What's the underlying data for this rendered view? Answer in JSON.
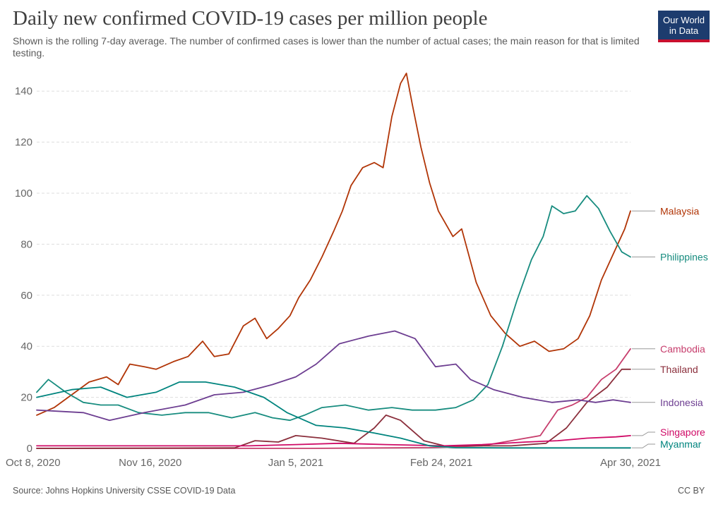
{
  "header": {
    "title": "Daily new confirmed COVID-19 cases per million people",
    "subtitle": "Shown is the rolling 7-day average. The number of confirmed cases is lower than the number of actual cases; the main reason for that is limited testing.",
    "logo_line1": "Our World",
    "logo_line2": "in Data"
  },
  "footer": {
    "source": "Source: Johns Hopkins University CSSE COVID-19 Data",
    "license": "CC BY"
  },
  "colors": {
    "logo_bg": "#1d3c6e",
    "logo_accent": "#c8102e",
    "grid": "#dddddd",
    "axis_text": "#666666"
  },
  "chart_data": {
    "type": "line",
    "x_axis": {
      "type": "date",
      "start": "2020-10-08",
      "end": "2021-04-30",
      "ticks": [
        "2020-10-08",
        "2020-11-16",
        "2021-01-05",
        "2021-02-24",
        "2021-04-30"
      ],
      "tick_labels": [
        "Oct 8, 2020",
        "Nov 16, 2020",
        "Jan 5, 2021",
        "Feb 24, 2021",
        "Apr 30, 2021"
      ]
    },
    "y_axis": {
      "ticks": [
        0,
        20,
        40,
        60,
        80,
        100,
        120,
        140
      ],
      "ylim": [
        0,
        150
      ]
    },
    "grid": true,
    "legend": "right-end labels",
    "series": [
      {
        "name": "Malaysia",
        "color": "#b13507",
        "points": [
          [
            "2020-10-08",
            13
          ],
          [
            "2020-10-14",
            16
          ],
          [
            "2020-10-20",
            21
          ],
          [
            "2020-10-26",
            26
          ],
          [
            "2020-11-01",
            28
          ],
          [
            "2020-11-05",
            25
          ],
          [
            "2020-11-09",
            33
          ],
          [
            "2020-11-14",
            32
          ],
          [
            "2020-11-18",
            31
          ],
          [
            "2020-11-24",
            34
          ],
          [
            "2020-11-29",
            36
          ],
          [
            "2020-12-04",
            42
          ],
          [
            "2020-12-08",
            36
          ],
          [
            "2020-12-13",
            37
          ],
          [
            "2020-12-18",
            48
          ],
          [
            "2020-12-22",
            51
          ],
          [
            "2020-12-26",
            43
          ],
          [
            "2020-12-30",
            47
          ],
          [
            "2021-01-03",
            52
          ],
          [
            "2021-01-06",
            59
          ],
          [
            "2021-01-10",
            66
          ],
          [
            "2021-01-14",
            75
          ],
          [
            "2021-01-18",
            85
          ],
          [
            "2021-01-21",
            93
          ],
          [
            "2021-01-24",
            103
          ],
          [
            "2021-01-28",
            110
          ],
          [
            "2021-02-01",
            112
          ],
          [
            "2021-02-04",
            110
          ],
          [
            "2021-02-07",
            130
          ],
          [
            "2021-02-10",
            143
          ],
          [
            "2021-02-12",
            147
          ],
          [
            "2021-02-14",
            135
          ],
          [
            "2021-02-17",
            118
          ],
          [
            "2021-02-20",
            104
          ],
          [
            "2021-02-23",
            93
          ],
          [
            "2021-02-28",
            83
          ],
          [
            "2021-03-03",
            86
          ],
          [
            "2021-03-08",
            65
          ],
          [
            "2021-03-13",
            52
          ],
          [
            "2021-03-18",
            45
          ],
          [
            "2021-03-23",
            40
          ],
          [
            "2021-03-28",
            42
          ],
          [
            "2021-04-02",
            38
          ],
          [
            "2021-04-07",
            39
          ],
          [
            "2021-04-12",
            43
          ],
          [
            "2021-04-16",
            52
          ],
          [
            "2021-04-20",
            66
          ],
          [
            "2021-04-24",
            76
          ],
          [
            "2021-04-28",
            86
          ],
          [
            "2021-04-30",
            93
          ]
        ]
      },
      {
        "name": "Philippines",
        "color": "#178c7f",
        "points": [
          [
            "2020-10-08",
            22
          ],
          [
            "2020-10-12",
            27
          ],
          [
            "2020-10-18",
            22
          ],
          [
            "2020-10-24",
            18
          ],
          [
            "2020-10-30",
            17
          ],
          [
            "2020-11-05",
            17
          ],
          [
            "2020-11-12",
            14
          ],
          [
            "2020-11-20",
            13
          ],
          [
            "2020-11-28",
            14
          ],
          [
            "2020-12-06",
            14
          ],
          [
            "2020-12-14",
            12
          ],
          [
            "2020-12-22",
            14
          ],
          [
            "2020-12-28",
            12
          ],
          [
            "2021-01-03",
            11
          ],
          [
            "2021-01-08",
            13
          ],
          [
            "2021-01-14",
            16
          ],
          [
            "2021-01-22",
            17
          ],
          [
            "2021-01-30",
            15
          ],
          [
            "2021-02-07",
            16
          ],
          [
            "2021-02-14",
            15
          ],
          [
            "2021-02-22",
            15
          ],
          [
            "2021-03-01",
            16
          ],
          [
            "2021-03-07",
            19
          ],
          [
            "2021-03-12",
            25
          ],
          [
            "2021-03-17",
            40
          ],
          [
            "2021-03-22",
            58
          ],
          [
            "2021-03-27",
            74
          ],
          [
            "2021-03-31",
            83
          ],
          [
            "2021-04-03",
            95
          ],
          [
            "2021-04-07",
            92
          ],
          [
            "2021-04-11",
            93
          ],
          [
            "2021-04-15",
            99
          ],
          [
            "2021-04-19",
            94
          ],
          [
            "2021-04-23",
            85
          ],
          [
            "2021-04-27",
            77
          ],
          [
            "2021-04-30",
            75
          ]
        ]
      },
      {
        "name": "Cambodia",
        "color": "#c73e6d",
        "points": [
          [
            "2020-10-08",
            0
          ],
          [
            "2021-01-10",
            0
          ],
          [
            "2021-02-20",
            0.3
          ],
          [
            "2021-03-10",
            1
          ],
          [
            "2021-03-20",
            3
          ],
          [
            "2021-03-30",
            5
          ],
          [
            "2021-04-05",
            15
          ],
          [
            "2021-04-10",
            17
          ],
          [
            "2021-04-15",
            20
          ],
          [
            "2021-04-20",
            27
          ],
          [
            "2021-04-25",
            31
          ],
          [
            "2021-04-30",
            39
          ]
        ]
      },
      {
        "name": "Thailand",
        "color": "#8b2f3c",
        "points": [
          [
            "2020-10-08",
            0
          ],
          [
            "2020-12-15",
            0.2
          ],
          [
            "2020-12-22",
            3
          ],
          [
            "2020-12-30",
            2.5
          ],
          [
            "2021-01-05",
            5
          ],
          [
            "2021-01-14",
            4
          ],
          [
            "2021-01-25",
            2
          ],
          [
            "2021-02-01",
            8
          ],
          [
            "2021-02-05",
            13
          ],
          [
            "2021-02-10",
            11
          ],
          [
            "2021-02-18",
            3
          ],
          [
            "2021-02-25",
            1
          ],
          [
            "2021-03-20",
            1
          ],
          [
            "2021-04-01",
            2
          ],
          [
            "2021-04-08",
            8
          ],
          [
            "2021-04-15",
            18
          ],
          [
            "2021-04-22",
            24
          ],
          [
            "2021-04-27",
            31
          ],
          [
            "2021-04-30",
            31
          ]
        ]
      },
      {
        "name": "Indonesia",
        "color": "#6d3e91",
        "points": [
          [
            "2020-10-08",
            15
          ],
          [
            "2020-10-24",
            14
          ],
          [
            "2020-11-02",
            11
          ],
          [
            "2020-11-14",
            14
          ],
          [
            "2020-11-28",
            17
          ],
          [
            "2020-12-08",
            21
          ],
          [
            "2020-12-18",
            22
          ],
          [
            "2020-12-28",
            25
          ],
          [
            "2021-01-05",
            28
          ],
          [
            "2021-01-12",
            33
          ],
          [
            "2021-01-20",
            41
          ],
          [
            "2021-01-30",
            44
          ],
          [
            "2021-02-08",
            46
          ],
          [
            "2021-02-15",
            43
          ],
          [
            "2021-02-22",
            32
          ],
          [
            "2021-03-01",
            33
          ],
          [
            "2021-03-06",
            27
          ],
          [
            "2021-03-14",
            23
          ],
          [
            "2021-03-24",
            20
          ],
          [
            "2021-04-03",
            18
          ],
          [
            "2021-04-12",
            19
          ],
          [
            "2021-04-18",
            18
          ],
          [
            "2021-04-24",
            19
          ],
          [
            "2021-04-30",
            18
          ]
        ]
      },
      {
        "name": "Singapore",
        "color": "#cf0a66",
        "points": [
          [
            "2020-10-08",
            1
          ],
          [
            "2020-11-15",
            1
          ],
          [
            "2020-12-20",
            1
          ],
          [
            "2021-01-05",
            1.5
          ],
          [
            "2021-01-20",
            2
          ],
          [
            "2021-02-05",
            1.5
          ],
          [
            "2021-02-25",
            1
          ],
          [
            "2021-03-10",
            1.5
          ],
          [
            "2021-03-25",
            2.5
          ],
          [
            "2021-04-05",
            3
          ],
          [
            "2021-04-15",
            4
          ],
          [
            "2021-04-25",
            4.5
          ],
          [
            "2021-04-30",
            5
          ]
        ]
      },
      {
        "name": "Myanmar",
        "color": "#00847e",
        "points": [
          [
            "2020-10-08",
            20
          ],
          [
            "2020-10-20",
            23
          ],
          [
            "2020-10-30",
            24
          ],
          [
            "2020-11-08",
            20
          ],
          [
            "2020-11-18",
            22
          ],
          [
            "2020-11-26",
            26
          ],
          [
            "2020-12-05",
            26
          ],
          [
            "2020-12-15",
            24
          ],
          [
            "2020-12-25",
            20
          ],
          [
            "2021-01-02",
            14
          ],
          [
            "2021-01-12",
            9
          ],
          [
            "2021-01-22",
            8
          ],
          [
            "2021-02-01",
            6
          ],
          [
            "2021-02-10",
            4
          ],
          [
            "2021-02-20",
            1
          ],
          [
            "2021-03-01",
            0.3
          ],
          [
            "2021-03-20",
            0.2
          ],
          [
            "2021-04-30",
            0.2
          ]
        ]
      }
    ]
  }
}
